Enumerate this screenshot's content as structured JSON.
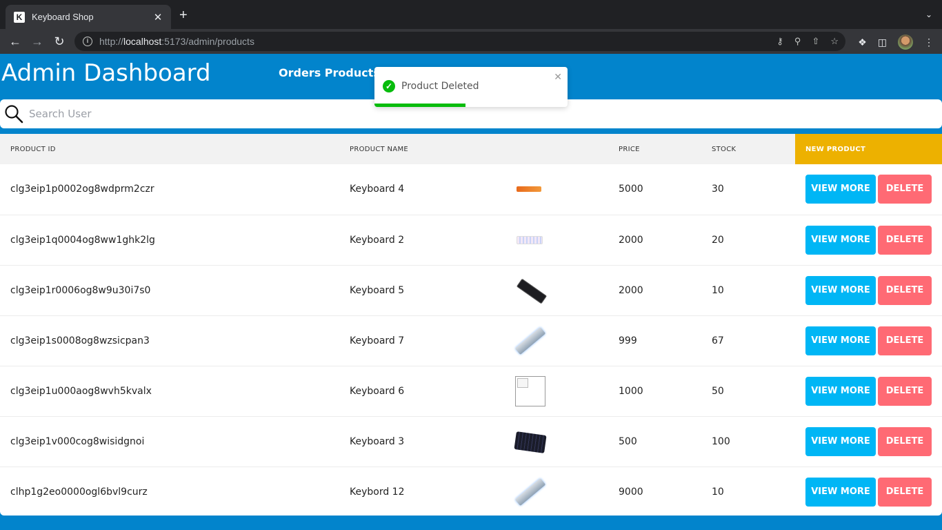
{
  "browser": {
    "tab_title": "Keyboard Shop",
    "favicon_letter": "K",
    "url_scheme": "http://",
    "url_host": "localhost",
    "url_rest": ":5173/admin/products"
  },
  "header": {
    "title": "Admin Dashboard",
    "nav": "Orders Products"
  },
  "search": {
    "placeholder": "Search User"
  },
  "table": {
    "columns": {
      "id": "PRODUCT ID",
      "name": "PRODUCT NAME",
      "price": "PRICE",
      "stock": "STOCK",
      "new_product": "NEW PRODUCT"
    },
    "view_label": "VIEW MORE",
    "delete_label": "DELETE",
    "rows": [
      {
        "id": "clg3eip1p0002og8wdprm2czr",
        "name": "Keyboard 4",
        "price": "5000",
        "stock": "30",
        "image": "keyboard-orange"
      },
      {
        "id": "clg3eip1q0004og8ww1ghk2lg",
        "name": "Keyboard 2",
        "price": "2000",
        "stock": "20",
        "image": "keyboard-white"
      },
      {
        "id": "clg3eip1r0006og8w9u30i7s0",
        "name": "Keyboard 5",
        "price": "2000",
        "stock": "10",
        "image": "keyboard-black-tilt"
      },
      {
        "id": "clg3eip1s0008og8wzsicpan3",
        "name": "Keyboard 7",
        "price": "999",
        "stock": "67",
        "image": "keyboard-silver-tilt"
      },
      {
        "id": "clg3eip1u000aog8wvh5kvalx",
        "name": "Keyboard 6",
        "price": "1000",
        "stock": "50",
        "image": "broken-image"
      },
      {
        "id": "clg3eip1v000cog8wisidgnoi",
        "name": "Keyboard 3",
        "price": "500",
        "stock": "100",
        "image": "keyboard-black-flat"
      },
      {
        "id": "clhp1g2eo0000ogl6bvl9curz",
        "name": "Keybord 12",
        "price": "9000",
        "stock": "10",
        "image": "keyboard-silver-tilt"
      }
    ]
  },
  "toast": {
    "message": "Product Deleted",
    "progress_percent": 47
  },
  "colors": {
    "header_bg": "#0284cc",
    "view_button": "#00b6f5",
    "delete_button": "#ff6a74",
    "new_product_bg": "#edb100",
    "toast_success": "#07bc0c"
  }
}
